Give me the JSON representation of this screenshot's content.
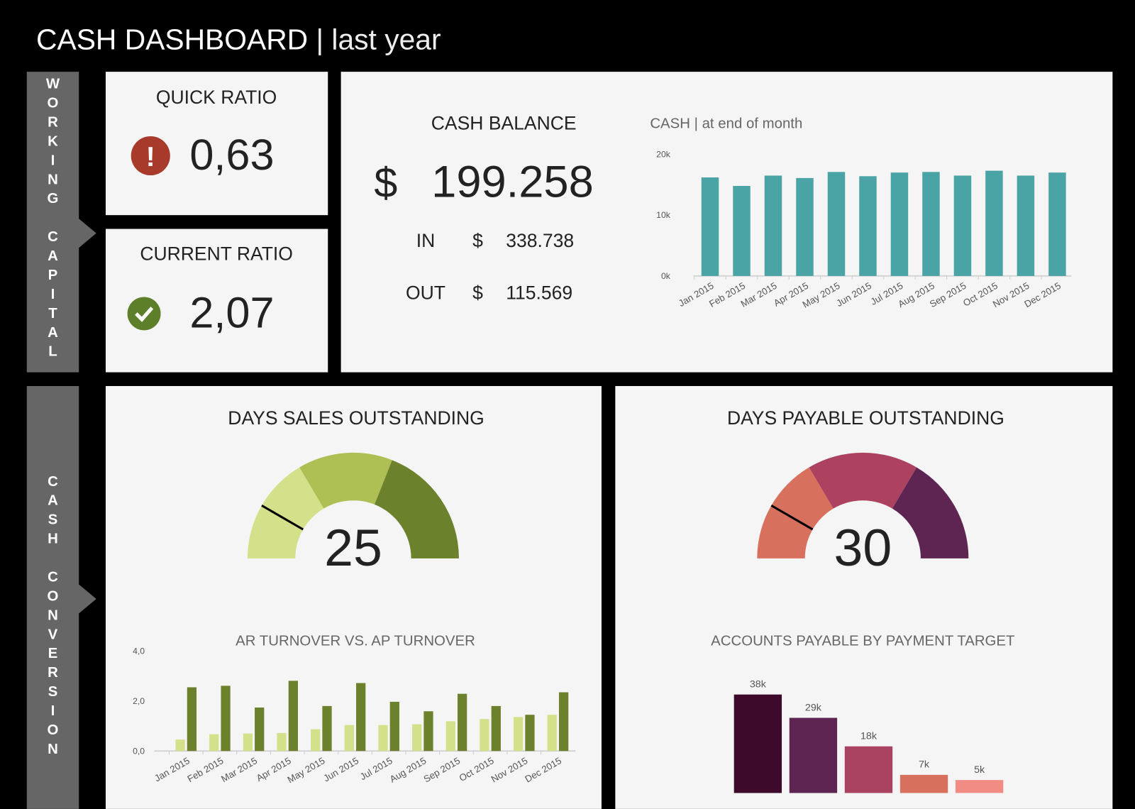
{
  "header": {
    "title": "CASH DASHBOARD",
    "subtitle": "| last year"
  },
  "sections": [
    "WORKING CAPITAL",
    "CASH CONVERSION"
  ],
  "kpis": [
    {
      "label": "QUICK RATIO",
      "value": "0,63"
    },
    {
      "label": "CURRENT RATIO",
      "value": "2,07"
    }
  ],
  "cash_balance": {
    "title": "CASH BALANCE",
    "currency": "$",
    "value": "199.258",
    "in": {
      "label": "IN",
      "value": "338.738"
    },
    "out": {
      "label": "OUT",
      "value": "115.569"
    }
  },
  "chart_data": [
    {
      "type": "bar",
      "title": "CASH | at end of month",
      "categories": [
        "Jan 2015",
        "Feb 2015",
        "Mar 2015",
        "Apr 2015",
        "May 2015",
        "Jun 2015",
        "Jul 2015",
        "Aug 2015",
        "Sep 2015",
        "Oct 2015",
        "Nov 2015",
        "Dec 2015"
      ],
      "values": [
        16200,
        14800,
        16500,
        16100,
        17100,
        16400,
        17000,
        17100,
        16500,
        17300,
        16500,
        17000
      ],
      "color": "#4aa3a4",
      "ylim": [
        0,
        20000
      ],
      "yticks": [
        {
          "value": 0,
          "label": "0k"
        },
        {
          "value": 10000,
          "label": "10k"
        },
        {
          "value": 20000,
          "label": "20k"
        }
      ]
    },
    {
      "type": "bar",
      "title": "AR TURNOVER VS. AP TURNOVER",
      "categories": [
        "Jan 2015",
        "Feb 2015",
        "Mar 2015",
        "Apr 2015",
        "May 2015",
        "Jun 2015",
        "Jul 2015",
        "Aug 2015",
        "Sep 2015",
        "Oct 2015",
        "Nov 2015",
        "Dec 2015"
      ],
      "series": [
        {
          "color": "#d4e08a",
          "values": [
            0.46,
            0.67,
            0.7,
            0.72,
            0.87,
            1.04,
            1.04,
            1.07,
            1.19,
            1.28,
            1.36,
            1.45
          ]
        },
        {
          "color": "#6b812b",
          "values": [
            2.55,
            2.61,
            1.74,
            2.81,
            1.8,
            2.72,
            1.97,
            1.59,
            2.29,
            1.8,
            1.45,
            2.35
          ]
        }
      ],
      "ylim": [
        0,
        4
      ],
      "yticks": [
        {
          "value": 0,
          "label": "0,0"
        },
        {
          "value": 2,
          "label": "2,0"
        },
        {
          "value": 4,
          "label": "4,0"
        }
      ]
    },
    {
      "type": "bar",
      "title": "ACCOUNTS PAYABLE BY PAYMENT TARGET",
      "categories": [
        null,
        null,
        null,
        null,
        null
      ],
      "values": [
        38000,
        29000,
        18000,
        7000,
        5000
      ],
      "value_labels": [
        "38k",
        "29k",
        "18k",
        "7k",
        "5k"
      ],
      "colors": [
        "#3e0a2c",
        "#5e2553",
        "#a94260",
        "#d8705e",
        "#f08c84"
      ]
    },
    {
      "type": "gauge",
      "title": "DAYS SALES OUTSTANDING",
      "value": 25,
      "lim": [
        0,
        150
      ],
      "colors": [
        "#d4e08a",
        "#aebf54",
        "#6b812b"
      ]
    },
    {
      "type": "gauge",
      "title": "DAYS PAYABLE OUTSTANDING",
      "value": 30,
      "lim": [
        0,
        180
      ],
      "colors": [
        "#d8705e",
        "#ac4160",
        "#5e2553"
      ]
    }
  ]
}
